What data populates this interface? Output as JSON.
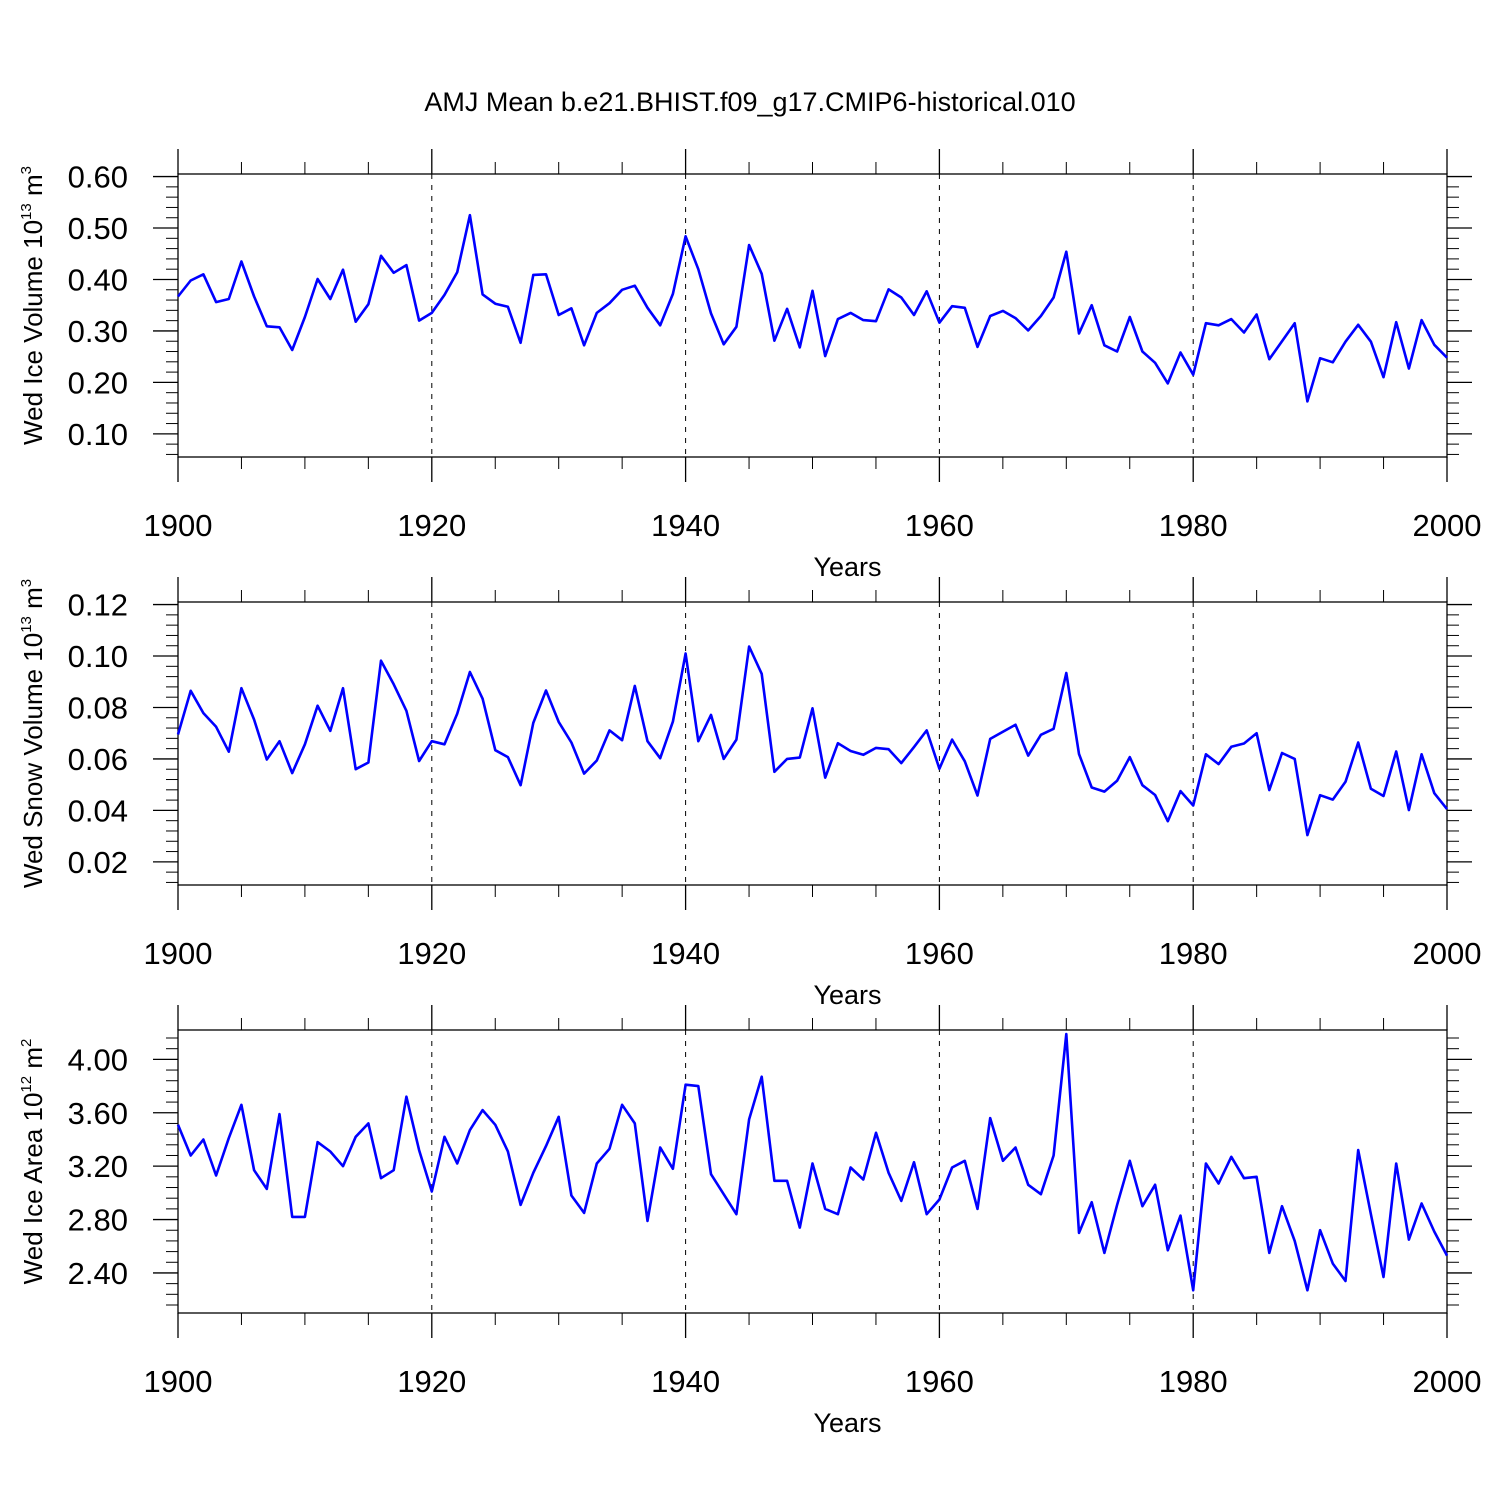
{
  "title": "AMJ Mean b.e21.BHIST.f09_g17.CMIP6-historical.010",
  "colors": {
    "series": "#0000ff",
    "axes": "#000000",
    "grid": "#000000"
  },
  "chart_data": [
    {
      "type": "line",
      "ylabel": {
        "main": "Wed Ice Volume 10",
        "exp": "13",
        "unit": " m",
        "unit_exp": "3"
      },
      "xlabel": "Years",
      "xlim": [
        1900,
        2000
      ],
      "ylim": [
        0.055,
        0.605
      ],
      "x_ticks": [
        1900,
        1920,
        1940,
        1960,
        1980,
        2000
      ],
      "y_ticks": [
        0.1,
        0.2,
        0.3,
        0.4,
        0.5,
        0.6
      ],
      "y_tick_decimals": 2,
      "y_minor_step": 0.02,
      "grid": "x-major-dashed",
      "x_start": 1900,
      "values": [
        0.367,
        0.398,
        0.41,
        0.356,
        0.362,
        0.435,
        0.367,
        0.309,
        0.307,
        0.263,
        0.327,
        0.401,
        0.362,
        0.419,
        0.318,
        0.352,
        0.446,
        0.413,
        0.428,
        0.32,
        0.335,
        0.37,
        0.414,
        0.525,
        0.371,
        0.353,
        0.347,
        0.277,
        0.409,
        0.41,
        0.331,
        0.344,
        0.272,
        0.335,
        0.354,
        0.38,
        0.388,
        0.345,
        0.311,
        0.372,
        0.484,
        0.42,
        0.334,
        0.274,
        0.308,
        0.467,
        0.411,
        0.281,
        0.343,
        0.268,
        0.378,
        0.251,
        0.323,
        0.335,
        0.321,
        0.319,
        0.381,
        0.365,
        0.331,
        0.377,
        0.316,
        0.348,
        0.345,
        0.269,
        0.329,
        0.339,
        0.325,
        0.301,
        0.329,
        0.365,
        0.454,
        0.295,
        0.35,
        0.272,
        0.26,
        0.327,
        0.26,
        0.238,
        0.198,
        0.258,
        0.215,
        0.315,
        0.311,
        0.323,
        0.297,
        0.332,
        0.245,
        0.28,
        0.315,
        0.163,
        0.247,
        0.239,
        0.279,
        0.312,
        0.279,
        0.21,
        0.317,
        0.227,
        0.321,
        0.273,
        0.248
      ]
    },
    {
      "type": "line",
      "ylabel": {
        "main": "Wed Snow Volume 10",
        "exp": "13",
        "unit": " m",
        "unit_exp": "3"
      },
      "xlabel": "Years",
      "xlim": [
        1900,
        2000
      ],
      "ylim": [
        0.011,
        0.121
      ],
      "x_ticks": [
        1900,
        1920,
        1940,
        1960,
        1980,
        2000
      ],
      "y_ticks": [
        0.02,
        0.04,
        0.06,
        0.08,
        0.1,
        0.12
      ],
      "y_tick_decimals": 2,
      "y_minor_step": 0.004,
      "grid": "x-major-dashed",
      "x_start": 1900,
      "values": [
        0.0695,
        0.0865,
        0.0778,
        0.0725,
        0.0628,
        0.0875,
        0.0753,
        0.0598,
        0.0669,
        0.0545,
        0.0657,
        0.0807,
        0.0709,
        0.0875,
        0.056,
        0.0586,
        0.0982,
        0.089,
        0.0787,
        0.0592,
        0.0669,
        0.0657,
        0.0776,
        0.0938,
        0.0834,
        0.0634,
        0.0607,
        0.0498,
        0.074,
        0.0866,
        0.0744,
        0.0664,
        0.0543,
        0.0594,
        0.0711,
        0.0673,
        0.0884,
        0.0669,
        0.0603,
        0.0745,
        0.101,
        0.0669,
        0.0771,
        0.06,
        0.0675,
        0.1037,
        0.0931,
        0.055,
        0.06,
        0.0605,
        0.0797,
        0.0527,
        0.0661,
        0.0631,
        0.0616,
        0.0643,
        0.0638,
        0.0584,
        0.0646,
        0.0711,
        0.0562,
        0.0675,
        0.0591,
        0.0458,
        0.0678,
        0.0706,
        0.0733,
        0.0613,
        0.0694,
        0.0717,
        0.0934,
        0.0619,
        0.0489,
        0.0473,
        0.0515,
        0.0607,
        0.0498,
        0.046,
        0.0358,
        0.0475,
        0.0419,
        0.0618,
        0.058,
        0.0647,
        0.066,
        0.07,
        0.0479,
        0.0623,
        0.06,
        0.0304,
        0.0459,
        0.0442,
        0.0511,
        0.0664,
        0.0484,
        0.0456,
        0.0629,
        0.0401,
        0.0618,
        0.0467,
        0.0405
      ]
    },
    {
      "type": "line",
      "ylabel": {
        "main": "Wed Ice Area 10",
        "exp": "12",
        "unit": " m",
        "unit_exp": "2"
      },
      "xlabel": "Years",
      "xlim": [
        1900,
        2000
      ],
      "ylim": [
        2.1,
        4.22
      ],
      "x_ticks": [
        1900,
        1920,
        1940,
        1960,
        1980,
        2000
      ],
      "y_ticks": [
        2.4,
        2.8,
        3.2,
        3.6,
        4.0
      ],
      "y_tick_decimals": 2,
      "y_minor_step": 0.08,
      "grid": "x-major-dashed",
      "x_start": 1900,
      "values": [
        3.51,
        3.28,
        3.4,
        3.13,
        3.41,
        3.66,
        3.17,
        3.03,
        3.59,
        2.82,
        2.82,
        3.38,
        3.31,
        3.2,
        3.42,
        3.52,
        3.11,
        3.17,
        3.72,
        3.32,
        3.01,
        3.42,
        3.22,
        3.47,
        3.62,
        3.51,
        3.31,
        2.91,
        3.15,
        3.35,
        3.57,
        2.98,
        2.85,
        3.22,
        3.33,
        3.66,
        3.52,
        2.79,
        3.34,
        3.18,
        3.81,
        3.8,
        3.14,
        2.99,
        2.84,
        3.55,
        3.87,
        3.09,
        3.09,
        2.74,
        3.22,
        2.88,
        2.84,
        3.19,
        3.1,
        3.45,
        3.15,
        2.94,
        3.23,
        2.84,
        2.95,
        3.19,
        3.24,
        2.88,
        3.56,
        3.24,
        3.34,
        3.06,
        2.99,
        3.28,
        4.19,
        2.7,
        2.93,
        2.55,
        2.91,
        3.24,
        2.9,
        3.06,
        2.57,
        2.83,
        2.27,
        3.22,
        3.07,
        3.27,
        3.11,
        3.12,
        2.55,
        2.9,
        2.64,
        2.27,
        2.72,
        2.47,
        2.34,
        3.32,
        2.84,
        2.37,
        3.22,
        2.65,
        2.92,
        2.71,
        2.53
      ]
    }
  ]
}
